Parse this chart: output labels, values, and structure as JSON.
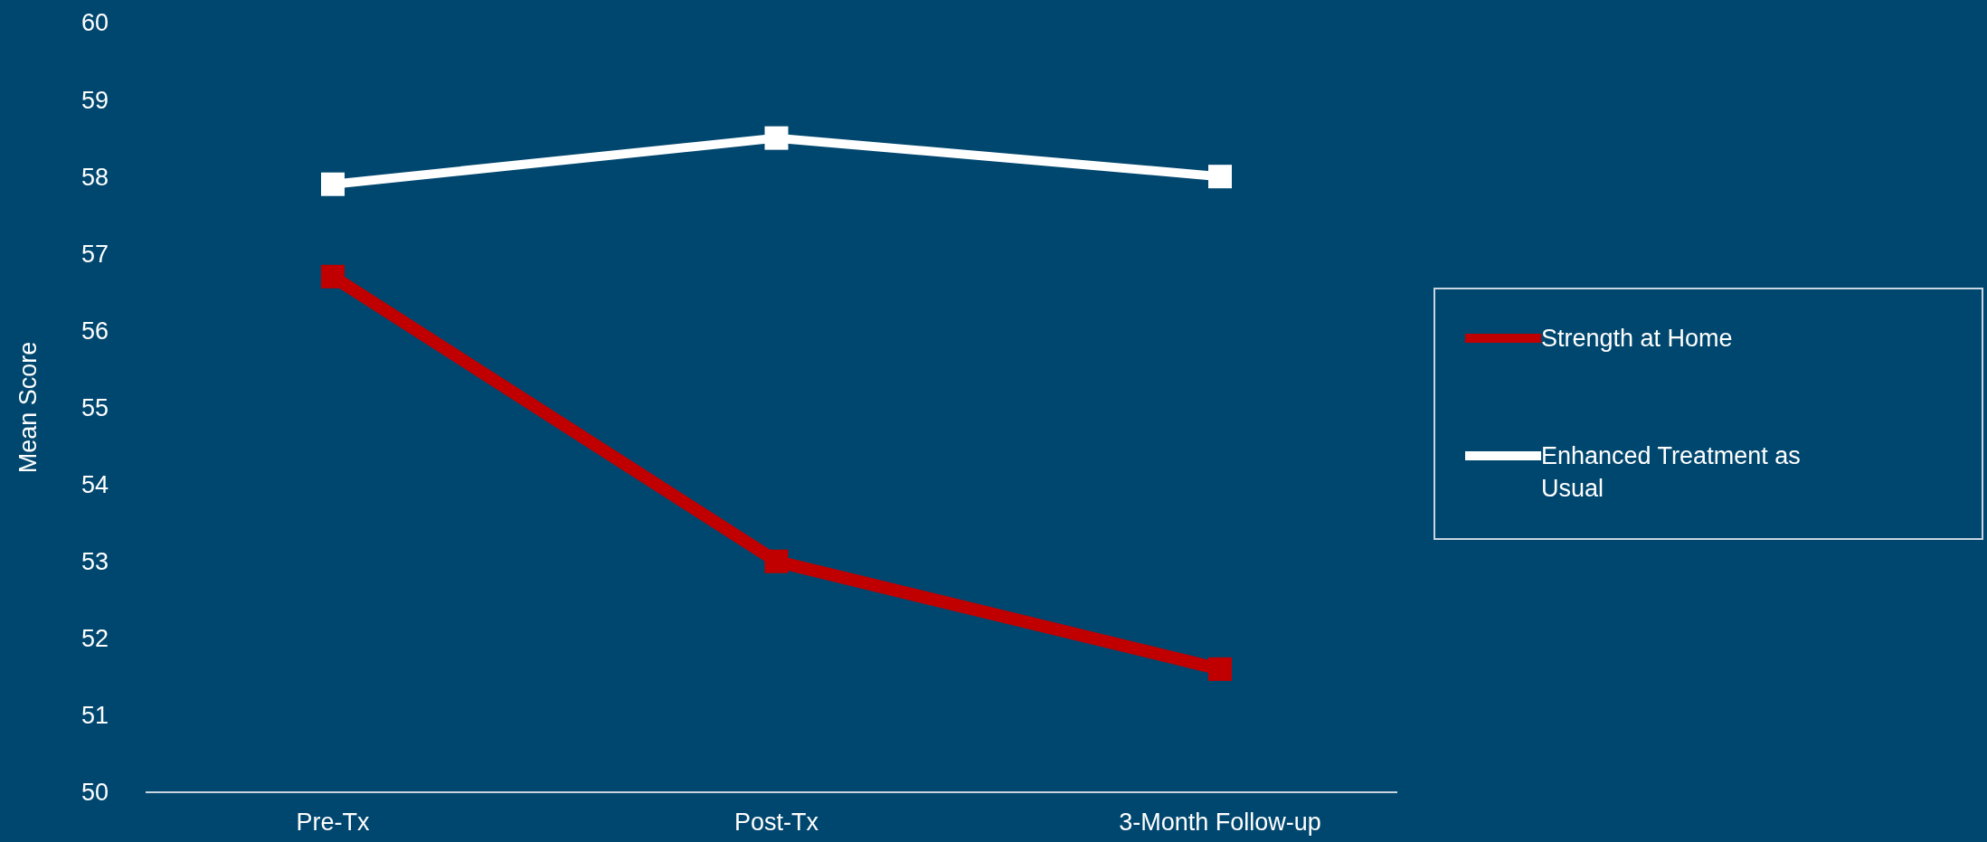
{
  "chart_data": {
    "type": "line",
    "ylabel": "Mean Score",
    "categories": [
      "Pre-Tx",
      "Post-Tx",
      "3-Month Follow-up"
    ],
    "series": [
      {
        "name": "Strength at Home",
        "color": "#c00000",
        "values": [
          56.7,
          53.0,
          51.6
        ]
      },
      {
        "name": "Enhanced Treatment as Usual",
        "color": "#ffffff",
        "values": [
          57.9,
          58.5,
          58.0
        ]
      }
    ],
    "ylim": [
      50,
      60
    ],
    "yticks": [
      50,
      51,
      52,
      53,
      54,
      55,
      56,
      57,
      58,
      59,
      60
    ],
    "marker": "square",
    "legend": "right",
    "grid": false
  }
}
